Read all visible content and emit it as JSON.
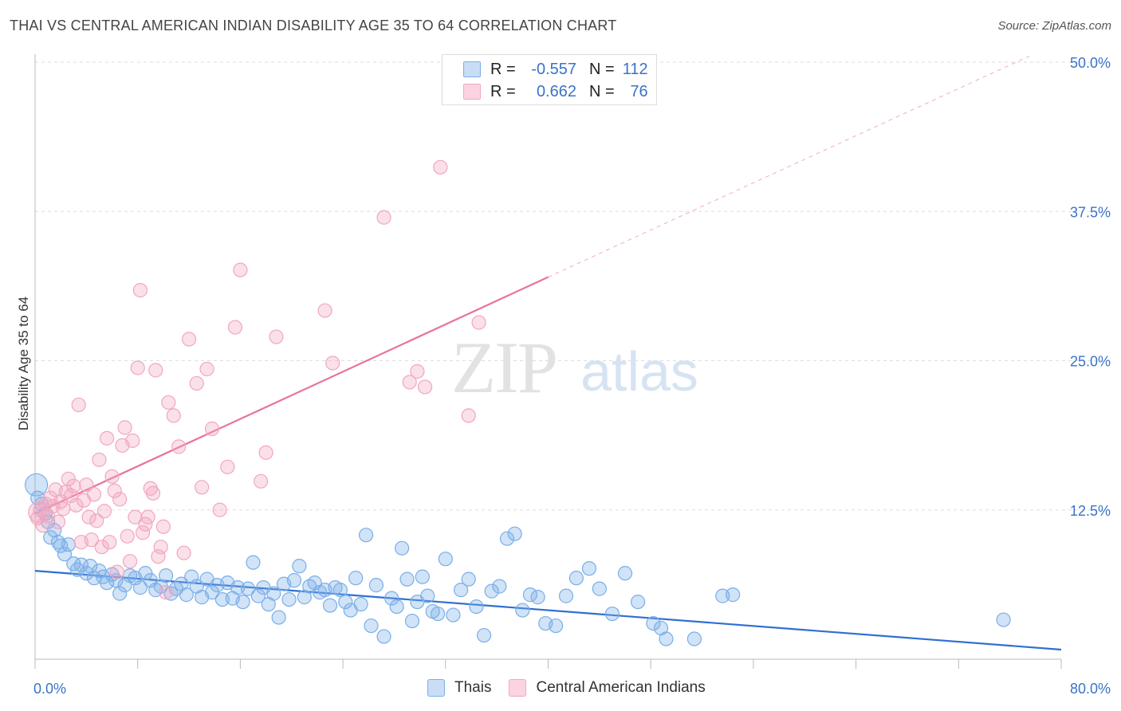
{
  "title": "THAI VS CENTRAL AMERICAN INDIAN DISABILITY AGE 35 TO 64 CORRELATION CHART",
  "source": "Source: ZipAtlas.com",
  "watermark": {
    "zip": "ZIP",
    "atlas": "atlas"
  },
  "legend": {
    "r_label": "R =",
    "n_label": "N =",
    "rows": [
      {
        "r": "-0.557",
        "n": "112",
        "color": "#7aaee8"
      },
      {
        "r": "0.662",
        "n": "76",
        "color": "#f2a6c0"
      }
    ]
  },
  "bottom_legend": [
    "Thais",
    "Central American Indians"
  ],
  "chart_data": {
    "type": "scatter",
    "title": "THAI VS CENTRAL AMERICAN INDIAN DISABILITY AGE 35 TO 64 CORRELATION CHART",
    "ylabel": "Disability Age 35 to 64",
    "xlabel": "",
    "xlim": [
      0,
      80
    ],
    "ylim": [
      0,
      50
    ],
    "x_tick_labels": [
      "0.0%",
      "80.0%"
    ],
    "y_ticks": [
      12.5,
      25.0,
      37.5,
      50.0
    ],
    "y_tick_labels": [
      "12.5%",
      "25.0%",
      "37.5%",
      "50.0%"
    ],
    "grid": "horizontal dashed",
    "legend_position": "top-center",
    "series": [
      {
        "name": "Thais",
        "color": "#7aaee8",
        "line_color": "#2f6fd1",
        "trend": {
          "x0": 0,
          "y0": 7.4,
          "x1": 80,
          "y1": 0.8
        },
        "points": [
          [
            0.2,
            13.5
          ],
          [
            0.5,
            13.0
          ],
          [
            0.8,
            12.2
          ],
          [
            1.0,
            11.5
          ],
          [
            1.2,
            10.2
          ],
          [
            1.5,
            10.8
          ],
          [
            1.8,
            9.8
          ],
          [
            2.0,
            9.5
          ],
          [
            2.3,
            8.8
          ],
          [
            2.6,
            9.6
          ],
          [
            3.0,
            8.0
          ],
          [
            3.3,
            7.5
          ],
          [
            3.6,
            7.9
          ],
          [
            4.0,
            7.2
          ],
          [
            4.3,
            7.8
          ],
          [
            4.6,
            6.8
          ],
          [
            5.0,
            7.4
          ],
          [
            5.3,
            6.9
          ],
          [
            5.6,
            6.4
          ],
          [
            6.0,
            7.1
          ],
          [
            6.3,
            6.6
          ],
          [
            6.6,
            5.5
          ],
          [
            7.0,
            6.2
          ],
          [
            7.4,
            7.0
          ],
          [
            7.8,
            6.8
          ],
          [
            8.2,
            6.0
          ],
          [
            8.6,
            7.2
          ],
          [
            9.0,
            6.6
          ],
          [
            9.4,
            5.8
          ],
          [
            9.8,
            6.1
          ],
          [
            10.2,
            7.0
          ],
          [
            10.6,
            5.5
          ],
          [
            11.0,
            5.9
          ],
          [
            11.4,
            6.3
          ],
          [
            11.8,
            5.4
          ],
          [
            12.2,
            6.9
          ],
          [
            12.6,
            6.1
          ],
          [
            13.0,
            5.2
          ],
          [
            13.4,
            6.7
          ],
          [
            13.8,
            5.6
          ],
          [
            14.2,
            6.2
          ],
          [
            14.6,
            5.0
          ],
          [
            15.0,
            6.4
          ],
          [
            15.4,
            5.1
          ],
          [
            15.8,
            6.0
          ],
          [
            16.2,
            4.8
          ],
          [
            16.6,
            5.9
          ],
          [
            17.0,
            8.1
          ],
          [
            17.4,
            5.3
          ],
          [
            17.8,
            6.0
          ],
          [
            18.2,
            4.6
          ],
          [
            18.6,
            5.5
          ],
          [
            19.0,
            3.5
          ],
          [
            19.4,
            6.3
          ],
          [
            19.8,
            5.0
          ],
          [
            20.2,
            6.6
          ],
          [
            20.6,
            7.8
          ],
          [
            21.0,
            5.2
          ],
          [
            21.4,
            6.1
          ],
          [
            21.8,
            6.4
          ],
          [
            22.2,
            5.6
          ],
          [
            22.6,
            5.8
          ],
          [
            23.0,
            4.5
          ],
          [
            23.4,
            6.0
          ],
          [
            23.8,
            5.8
          ],
          [
            24.2,
            4.8
          ],
          [
            24.6,
            4.1
          ],
          [
            25.0,
            6.8
          ],
          [
            25.4,
            4.6
          ],
          [
            25.8,
            10.4
          ],
          [
            26.2,
            2.8
          ],
          [
            26.6,
            6.2
          ],
          [
            27.2,
            1.9
          ],
          [
            27.8,
            5.1
          ],
          [
            28.2,
            4.4
          ],
          [
            28.6,
            9.3
          ],
          [
            29.0,
            6.7
          ],
          [
            29.4,
            3.2
          ],
          [
            29.8,
            4.8
          ],
          [
            30.2,
            6.9
          ],
          [
            30.6,
            5.3
          ],
          [
            31.0,
            4.0
          ],
          [
            31.4,
            3.8
          ],
          [
            32.0,
            8.4
          ],
          [
            32.6,
            3.7
          ],
          [
            33.2,
            5.8
          ],
          [
            33.8,
            6.7
          ],
          [
            34.4,
            4.4
          ],
          [
            35.0,
            2.0
          ],
          [
            35.6,
            5.7
          ],
          [
            36.2,
            6.1
          ],
          [
            36.8,
            10.1
          ],
          [
            37.4,
            10.5
          ],
          [
            38.0,
            4.1
          ],
          [
            38.6,
            5.4
          ],
          [
            39.2,
            5.2
          ],
          [
            39.8,
            3.0
          ],
          [
            40.6,
            2.8
          ],
          [
            41.4,
            5.3
          ],
          [
            42.2,
            6.8
          ],
          [
            43.2,
            7.6
          ],
          [
            44.0,
            5.9
          ],
          [
            45.0,
            3.8
          ],
          [
            46.0,
            7.2
          ],
          [
            47.0,
            4.8
          ],
          [
            48.2,
            3.0
          ],
          [
            48.8,
            2.6
          ],
          [
            49.2,
            1.7
          ],
          [
            51.4,
            1.7
          ],
          [
            53.6,
            5.3
          ],
          [
            54.4,
            5.4
          ],
          [
            75.5,
            3.3
          ]
        ]
      },
      {
        "name": "Central American Indians",
        "color": "#f2a6c0",
        "line_color": "#e8739c",
        "trend": {
          "x0": 0,
          "y0": 12.2,
          "x1": 40,
          "y1": 32.0
        },
        "trend_extended": {
          "x0": 40,
          "y0": 32.0,
          "x1": 77.5,
          "y1": 50.5
        },
        "points": [
          [
            0.2,
            11.8
          ],
          [
            0.4,
            12.5
          ],
          [
            0.6,
            11.2
          ],
          [
            0.8,
            13.0
          ],
          [
            1.0,
            12.0
          ],
          [
            1.2,
            13.5
          ],
          [
            1.4,
            12.8
          ],
          [
            1.6,
            14.2
          ],
          [
            1.8,
            11.5
          ],
          [
            2.0,
            13.2
          ],
          [
            2.2,
            12.6
          ],
          [
            2.4,
            14.0
          ],
          [
            2.6,
            15.1
          ],
          [
            2.8,
            13.7
          ],
          [
            3.0,
            14.5
          ],
          [
            3.2,
            12.9
          ],
          [
            3.4,
            21.3
          ],
          [
            3.6,
            9.8
          ],
          [
            3.8,
            13.3
          ],
          [
            4.0,
            14.6
          ],
          [
            4.2,
            11.9
          ],
          [
            4.4,
            10.0
          ],
          [
            4.6,
            13.8
          ],
          [
            4.8,
            11.6
          ],
          [
            5.0,
            16.7
          ],
          [
            5.2,
            9.4
          ],
          [
            5.4,
            12.4
          ],
          [
            5.6,
            18.5
          ],
          [
            5.8,
            9.8
          ],
          [
            6.0,
            15.3
          ],
          [
            6.2,
            14.1
          ],
          [
            6.4,
            7.3
          ],
          [
            6.6,
            13.4
          ],
          [
            6.8,
            17.9
          ],
          [
            7.0,
            19.4
          ],
          [
            7.2,
            10.3
          ],
          [
            7.4,
            8.2
          ],
          [
            7.6,
            18.3
          ],
          [
            7.8,
            11.9
          ],
          [
            8.0,
            24.4
          ],
          [
            8.2,
            30.9
          ],
          [
            8.4,
            10.6
          ],
          [
            8.6,
            11.3
          ],
          [
            8.8,
            11.9
          ],
          [
            9.0,
            14.3
          ],
          [
            9.2,
            13.9
          ],
          [
            9.4,
            24.2
          ],
          [
            9.6,
            8.6
          ],
          [
            9.8,
            9.4
          ],
          [
            10.0,
            11.1
          ],
          [
            10.2,
            5.6
          ],
          [
            10.4,
            21.5
          ],
          [
            10.8,
            20.4
          ],
          [
            11.2,
            17.8
          ],
          [
            11.6,
            8.9
          ],
          [
            12.0,
            26.8
          ],
          [
            12.6,
            23.1
          ],
          [
            13.0,
            14.4
          ],
          [
            13.4,
            24.3
          ],
          [
            13.8,
            19.3
          ],
          [
            14.4,
            12.5
          ],
          [
            15.0,
            16.1
          ],
          [
            15.6,
            27.8
          ],
          [
            16.0,
            32.6
          ],
          [
            17.6,
            14.9
          ],
          [
            18.0,
            17.3
          ],
          [
            18.8,
            27.0
          ],
          [
            22.6,
            29.2
          ],
          [
            23.2,
            24.8
          ],
          [
            27.2,
            37.0
          ],
          [
            29.2,
            23.2
          ],
          [
            29.8,
            24.1
          ],
          [
            30.4,
            22.8
          ],
          [
            31.6,
            41.2
          ],
          [
            33.8,
            20.4
          ],
          [
            34.6,
            28.2
          ]
        ]
      }
    ]
  }
}
